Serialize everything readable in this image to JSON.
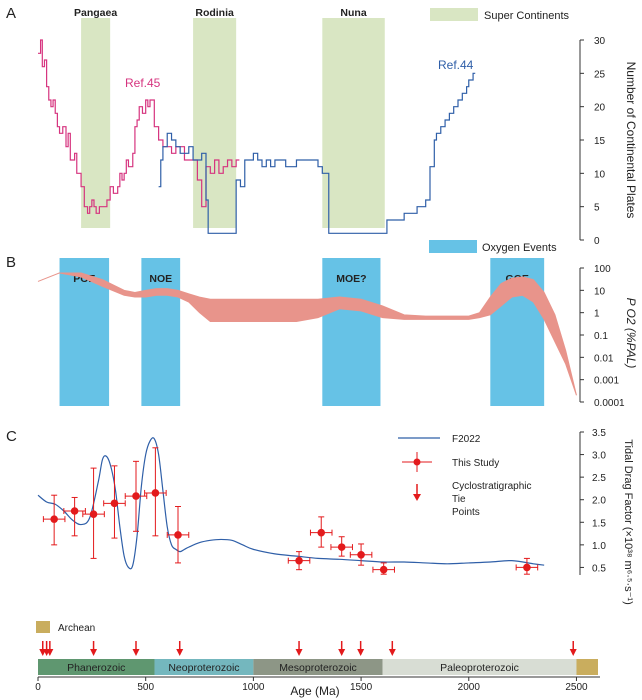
{
  "panel_letters": {
    "a": "A",
    "b": "B",
    "c": "C"
  },
  "x_axis": {
    "label": "Age (Ma)",
    "ticks": [
      0,
      500,
      1000,
      1500,
      2000,
      2500
    ],
    "range": [
      0,
      2600
    ]
  },
  "eras": [
    {
      "name": "Phanerozoic",
      "start": 0,
      "end": 541,
      "color": "#5f9770"
    },
    {
      "name": "Neoproterozoic",
      "start": 541,
      "end": 1000,
      "color": "#74b7be"
    },
    {
      "name": "Mesoproterozoic",
      "start": 1000,
      "end": 1600,
      "color": "#8d9686"
    },
    {
      "name": "Paleoproterozoic",
      "start": 1600,
      "end": 2500,
      "color": "#d8ddd4"
    },
    {
      "name": "",
      "start": 2500,
      "end": 2600,
      "color": "#c9ad5e"
    }
  ],
  "archean": {
    "label": "Archean",
    "color": "#c9ad5e"
  },
  "tie_points": [
    22,
    40,
    55,
    258,
    455,
    658,
    1212,
    1410,
    1498,
    1645,
    2485
  ],
  "chart_data": [
    {
      "type": "line",
      "panel": "A",
      "ylabel": "Number of Continental Plates",
      "ylim": [
        0,
        30
      ],
      "yticks": [
        0,
        5,
        10,
        15,
        20,
        25,
        30
      ],
      "supercontinents": [
        {
          "name": "Pangaea",
          "start": 200,
          "end": 335
        },
        {
          "name": "Rodinia",
          "start": 720,
          "end": 920
        },
        {
          "name": "Nuna",
          "start": 1320,
          "end": 1610
        }
      ],
      "supercontinent_legend": "Super Continents",
      "supercontinent_color": "#d9e6c3",
      "series": [
        {
          "name": "Ref.45",
          "color": "#d6347f",
          "x": [
            0,
            12,
            20,
            30,
            40,
            50,
            60,
            70,
            80,
            90,
            100,
            115,
            130,
            140,
            150,
            170,
            180,
            200,
            215,
            230,
            240,
            250,
            260,
            270,
            285,
            300,
            320,
            335,
            350,
            370,
            380,
            390,
            400,
            410,
            420,
            440,
            450,
            460,
            470,
            485,
            500,
            510,
            520,
            540,
            560,
            580,
            600,
            620,
            640,
            660,
            680,
            700,
            720,
            740,
            760,
            780,
            800,
            820,
            840,
            860,
            880,
            900,
            920,
            935
          ],
          "y": [
            28,
            30,
            26,
            27,
            23,
            21,
            20,
            21,
            19,
            17,
            16,
            17,
            14,
            16,
            12,
            13,
            10,
            8,
            5,
            4,
            5,
            6,
            5,
            4,
            5,
            5,
            6,
            8,
            7,
            8,
            10,
            9,
            10,
            12,
            11,
            13,
            17,
            18,
            20,
            19,
            21,
            20,
            21,
            17,
            15,
            14,
            14,
            13,
            14,
            14,
            12,
            12,
            12,
            9,
            5,
            11,
            10,
            12,
            10,
            11,
            12,
            11,
            12,
            12
          ]
        },
        {
          "name": "Ref.44",
          "color": "#2f5fa8",
          "x": [
            560,
            570,
            580,
            600,
            620,
            640,
            660,
            680,
            700,
            720,
            740,
            760,
            780,
            790,
            900,
            920,
            940,
            960,
            980,
            1000,
            1020,
            1040,
            1060,
            1080,
            1100,
            1150,
            1200,
            1250,
            1300,
            1320,
            1350,
            1400,
            1500,
            1600,
            1620,
            1650,
            1700,
            1760,
            1800,
            1820,
            1840,
            1850,
            1870,
            1890,
            1910,
            1930,
            1950,
            1970,
            1990,
            2000,
            2010,
            2020,
            2030
          ],
          "y": [
            8,
            12,
            14,
            16,
            15,
            14,
            13,
            13,
            14,
            12,
            12,
            13,
            6,
            1,
            1,
            9,
            8,
            12,
            12,
            13,
            12,
            11,
            12,
            11,
            12,
            11,
            12,
            12,
            11,
            10,
            1,
            1,
            1,
            1,
            3,
            3,
            4,
            5,
            6,
            11,
            15,
            16,
            17,
            18,
            19,
            20,
            21,
            22,
            23,
            24,
            24,
            25,
            25
          ]
        }
      ]
    },
    {
      "type": "area",
      "panel": "B",
      "ylabel": "P O2 (%PAL)",
      "yscale": "log",
      "ylim": [
        0.0001,
        100
      ],
      "ytick_labels": [
        "100",
        "10",
        "1",
        "0.1",
        "0.01",
        "0.001",
        "0.0001"
      ],
      "events_legend": "Oxygen Events",
      "events_color": "#66c2e6",
      "events": [
        {
          "name": "POE",
          "start": 100,
          "end": 330
        },
        {
          "name": "NOE",
          "start": 480,
          "end": 660
        },
        {
          "name": "MOE?",
          "start": 1320,
          "end": 1590
        },
        {
          "name": "GOE",
          "start": 2100,
          "end": 2350
        }
      ],
      "band_color": "#e8948b",
      "band_x": [
        0,
        100,
        200,
        300,
        400,
        450,
        500,
        550,
        600,
        650,
        700,
        750,
        800,
        900,
        1000,
        1100,
        1200,
        1300,
        1400,
        1500,
        1600,
        1700,
        1800,
        1900,
        2000,
        2050,
        2100,
        2150,
        2200,
        2250,
        2300,
        2350,
        2400,
        2450,
        2500
      ],
      "band_low": [
        25,
        60,
        40,
        15,
        6,
        5,
        5,
        6,
        6,
        5,
        3,
        1,
        0.4,
        0.4,
        0.4,
        0.4,
        0.4,
        0.6,
        1.5,
        1.2,
        0.6,
        0.5,
        0.5,
        0.5,
        0.5,
        0.6,
        0.8,
        2,
        5,
        6,
        3,
        0.5,
        0.05,
        0.005,
        0.0002
      ],
      "band_high": [
        25,
        60,
        60,
        30,
        10,
        8,
        10,
        12,
        12,
        10,
        7,
        5,
        4,
        4,
        4,
        4,
        4,
        4,
        5,
        4,
        2,
        0.8,
        0.7,
        0.7,
        0.7,
        1,
        5,
        20,
        35,
        40,
        30,
        8,
        0.8,
        0.02,
        0.0002
      ]
    },
    {
      "type": "scatter",
      "panel": "C",
      "ylabel": "Tidal Drag Factor (×10³⁸ m⁶·⁵·s⁻¹)",
      "ylim": [
        0,
        3.5
      ],
      "yticks": [
        0.5,
        1.0,
        1.5,
        2.0,
        2.5,
        3.0,
        3.5
      ],
      "ytick_labels": [
        "0.5",
        "1.0",
        "1.5",
        "2.0",
        "2.5",
        "3.0",
        "3.5"
      ],
      "legend": {
        "line": "F2022",
        "points": "This Study",
        "ties": "Cyclostratigraphic Tie Points"
      },
      "points_color": "#e31a1c",
      "line_color": "#2f5fa8",
      "points": [
        {
          "x": 75,
          "y": 1.57,
          "ylo": 1.0,
          "yhi": 2.1,
          "xerr": 50
        },
        {
          "x": 170,
          "y": 1.75,
          "ylo": 1.2,
          "yhi": 2.05,
          "xerr": 50
        },
        {
          "x": 258,
          "y": 1.68,
          "ylo": 0.7,
          "yhi": 2.7,
          "xerr": 50
        },
        {
          "x": 355,
          "y": 1.92,
          "ylo": 1.15,
          "yhi": 2.75,
          "xerr": 50
        },
        {
          "x": 455,
          "y": 2.08,
          "ylo": 1.3,
          "yhi": 2.85,
          "xerr": 50
        },
        {
          "x": 545,
          "y": 2.15,
          "ylo": 1.2,
          "yhi": 3.15,
          "xerr": 50
        },
        {
          "x": 650,
          "y": 1.22,
          "ylo": 0.6,
          "yhi": 1.85,
          "xerr": 50
        },
        {
          "x": 1212,
          "y": 0.65,
          "ylo": 0.45,
          "yhi": 0.85,
          "xerr": 50
        },
        {
          "x": 1315,
          "y": 1.27,
          "ylo": 0.95,
          "yhi": 1.62,
          "xerr": 50
        },
        {
          "x": 1410,
          "y": 0.95,
          "ylo": 0.75,
          "yhi": 1.18,
          "xerr": 50
        },
        {
          "x": 1500,
          "y": 0.78,
          "ylo": 0.55,
          "yhi": 1.02,
          "xerr": 50
        },
        {
          "x": 1605,
          "y": 0.45,
          "ylo": 0.35,
          "yhi": 0.6,
          "xerr": 50
        },
        {
          "x": 2270,
          "y": 0.5,
          "ylo": 0.35,
          "yhi": 0.7,
          "xerr": 50
        }
      ],
      "curve": {
        "x": [
          0,
          40,
          80,
          120,
          160,
          200,
          240,
          280,
          300,
          320,
          340,
          360,
          380,
          400,
          420,
          440,
          460,
          480,
          500,
          520,
          540,
          560,
          580,
          600,
          620,
          640,
          660,
          680,
          700,
          750,
          800,
          850,
          900,
          950,
          1000,
          1100,
          1200,
          1300,
          1400,
          1500,
          1600,
          1700,
          1800,
          1900,
          2000,
          2100,
          2200,
          2300,
          2350
        ],
        "y": [
          2.1,
          1.95,
          1.9,
          1.75,
          1.55,
          1.45,
          1.6,
          2.4,
          2.9,
          2.95,
          2.7,
          2.2,
          1.4,
          0.75,
          0.5,
          0.55,
          1.2,
          2.3,
          3.0,
          3.3,
          3.35,
          3.0,
          2.2,
          1.4,
          1.0,
          0.9,
          0.85,
          0.9,
          0.95,
          1.05,
          1.1,
          1.12,
          1.1,
          1.0,
          0.9,
          0.8,
          0.75,
          0.7,
          0.68,
          0.65,
          0.62,
          0.62,
          0.6,
          0.58,
          0.6,
          0.62,
          0.65,
          0.58,
          0.55
        ]
      }
    }
  ]
}
